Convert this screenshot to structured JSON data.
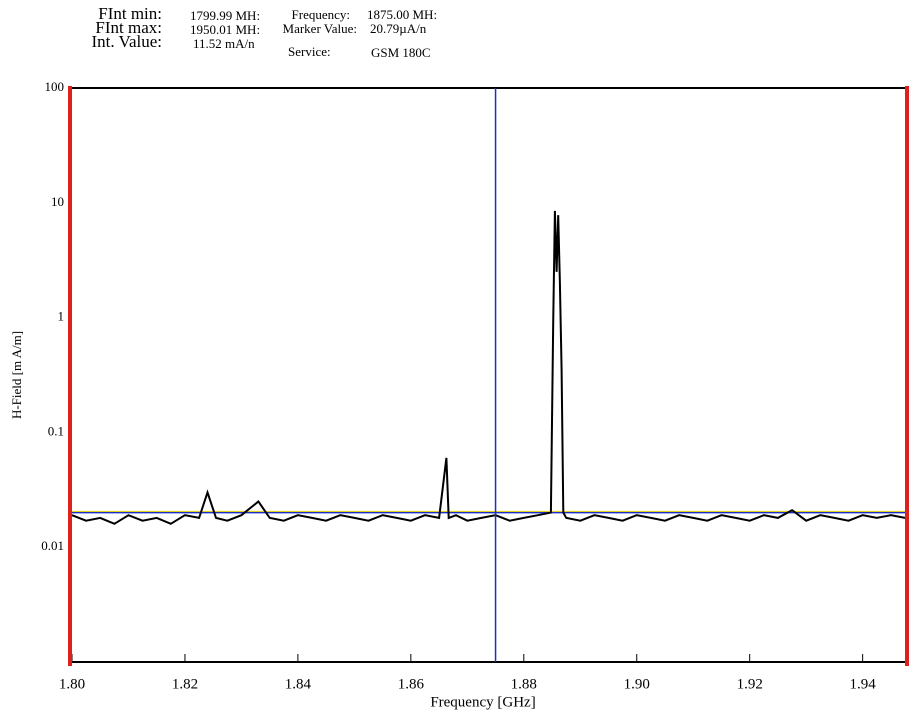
{
  "header": {
    "fint_min_label": "FInt min:",
    "fint_min_value": "1799.99 MH:",
    "fint_max_label": "FInt max:",
    "fint_max_value": "1950.01 MH:",
    "int_value_label": "Int. Value:",
    "int_value_value": "11.52 mA/n",
    "frequency_label": "Frequency:",
    "frequency_value": "1875.00 MH:",
    "marker_value_label": "Marker Value:",
    "marker_value_value": "20.79µA/n",
    "service_label": "Service:",
    "service_value": "GSM 180C"
  },
  "chart_data": {
    "type": "line",
    "x_label": "Frequency [GHz]",
    "y_label": "H-Field [m A/m]",
    "xlim": [
      1.8,
      1.9475
    ],
    "ylim": [
      0.001,
      100
    ],
    "log_y": true,
    "xticks": [
      {
        "value": 1.8,
        "label": "1.80"
      },
      {
        "value": 1.82,
        "label": "1.82"
      },
      {
        "value": 1.84,
        "label": "1.84"
      },
      {
        "value": 1.86,
        "label": "1.86"
      },
      {
        "value": 1.88,
        "label": "1.88"
      },
      {
        "value": 1.9,
        "label": "1.90"
      },
      {
        "value": 1.92,
        "label": "1.92"
      },
      {
        "value": 1.94,
        "label": "1.94"
      }
    ],
    "yticks": [
      100,
      10,
      1,
      0.1,
      0.01
    ],
    "marker_x": 1.875,
    "marker_color": "#1a2ec8",
    "reference_level": 0.02,
    "reference_color": "#1a2ec8",
    "mean_level": 0.0205,
    "mean_color": "#e6d200",
    "x": [
      1.8,
      1.8025,
      1.805,
      1.8075,
      1.81,
      1.8125,
      1.815,
      1.8175,
      1.82,
      1.8225,
      1.824,
      1.8255,
      1.8275,
      1.83,
      1.833,
      1.835,
      1.8375,
      1.84,
      1.8425,
      1.845,
      1.8475,
      1.85,
      1.8525,
      1.855,
      1.8575,
      1.86,
      1.8625,
      1.865,
      1.8663,
      1.8667,
      1.868,
      1.87,
      1.8725,
      1.875,
      1.8775,
      1.88,
      1.8825,
      1.8848,
      1.8852,
      1.8855,
      1.8858,
      1.8861,
      1.8864,
      1.8867,
      1.887,
      1.8875,
      1.89,
      1.8925,
      1.895,
      1.8975,
      1.9,
      1.9025,
      1.905,
      1.9075,
      1.91,
      1.9125,
      1.915,
      1.9175,
      1.92,
      1.9225,
      1.925,
      1.9275,
      1.93,
      1.9325,
      1.935,
      1.9375,
      1.94,
      1.9425,
      1.945,
      1.9475
    ],
    "series": [
      {
        "color": "#000000",
        "values": [
          0.019,
          0.017,
          0.018,
          0.016,
          0.019,
          0.017,
          0.018,
          0.016,
          0.019,
          0.018,
          0.03,
          0.018,
          0.017,
          0.019,
          0.025,
          0.018,
          0.017,
          0.019,
          0.018,
          0.017,
          0.019,
          0.018,
          0.017,
          0.019,
          0.018,
          0.017,
          0.019,
          0.018,
          0.06,
          0.018,
          0.019,
          0.017,
          0.018,
          0.019,
          0.017,
          0.018,
          0.019,
          0.02,
          0.9,
          8.5,
          2.5,
          7.8,
          2.0,
          0.35,
          0.02,
          0.018,
          0.017,
          0.019,
          0.018,
          0.017,
          0.019,
          0.018,
          0.017,
          0.019,
          0.018,
          0.017,
          0.019,
          0.018,
          0.017,
          0.019,
          0.018,
          0.021,
          0.017,
          0.019,
          0.018,
          0.017,
          0.019,
          0.018,
          0.019,
          0.018
        ]
      }
    ]
  }
}
